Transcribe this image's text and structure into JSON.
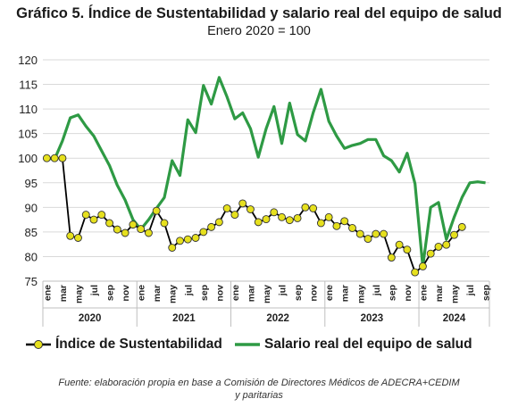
{
  "chart_data": {
    "type": "line",
    "title": "Gráfico 5. Índice de Sustentabilidad y salario real del equipo de salud",
    "subtitle": "Enero 2020 = 100",
    "ylim": [
      75,
      120
    ],
    "yticks": [
      75,
      80,
      85,
      90,
      95,
      100,
      105,
      110,
      115,
      120
    ],
    "x_tick_labels": [
      "ene",
      "mar",
      "may",
      "jul",
      "sep",
      "nov",
      "ene",
      "mar",
      "may",
      "jul",
      "sep",
      "nov",
      "ene",
      "mar",
      "may",
      "jul",
      "sep",
      "nov",
      "ene",
      "mar",
      "may",
      "jul",
      "sep",
      "nov",
      "ene",
      "mar",
      "may",
      "jul",
      "sep"
    ],
    "years": [
      "2020",
      "2021",
      "2022",
      "2023",
      "2024"
    ],
    "legend_position": "bottom",
    "series": [
      {
        "name": "Índice de Sustentabilidad",
        "color": "#000000",
        "marker_color": "#e6e01e",
        "values": [
          100,
          100,
          100,
          84.2,
          83.8,
          88.5,
          87.5,
          88.5,
          86.8,
          85.5,
          84.8,
          86.5,
          85.6,
          84.8,
          89.3,
          86.8,
          81.8,
          83.2,
          83.5,
          83.8,
          85.0,
          86.0,
          87.0,
          89.8,
          88.5,
          90.8,
          89.6,
          87.0,
          87.6,
          89.0,
          88.0,
          87.4,
          87.8,
          90.0,
          89.8,
          86.8,
          88.0,
          86.2,
          87.2,
          85.8,
          84.6,
          83.6,
          84.6,
          84.6,
          79.8,
          82.4,
          81.4,
          76.8,
          78.0,
          80.6,
          82.0,
          82.4,
          84.4,
          86.0
        ]
      },
      {
        "name": "Salario real del equipo de salud",
        "color": "#2e9a44",
        "values": [
          100,
          99.8,
          103.5,
          108.2,
          108.8,
          106.5,
          104.5,
          101.5,
          98.5,
          94.5,
          91.5,
          87.5,
          85.5,
          87.5,
          89.8,
          92.0,
          99.5,
          96.5,
          107.8,
          105.2,
          114.8,
          111.0,
          116.4,
          112.5,
          108.0,
          109.2,
          106.0,
          100.2,
          106.0,
          110.5,
          103.0,
          111.2,
          104.8,
          103.5,
          109.2,
          114.0,
          107.5,
          104.5,
          102.0,
          102.6,
          103.0,
          103.8,
          103.8,
          100.5,
          99.5,
          97.2,
          101.0,
          94.8,
          78.0,
          90.0,
          91.0,
          83.5,
          88.0,
          92.0,
          95.0,
          95.2,
          95.0
        ]
      }
    ]
  },
  "legend": {
    "sustentabilidad_label": "Índice de Sustentabilidad",
    "salario_label": "Salario real del equipo de salud"
  },
  "source": {
    "line1": "Fuente: elaboración propia en base a Comisión de Directores Médicos de ADECRA+CEDIM",
    "line2": "y paritarias"
  }
}
